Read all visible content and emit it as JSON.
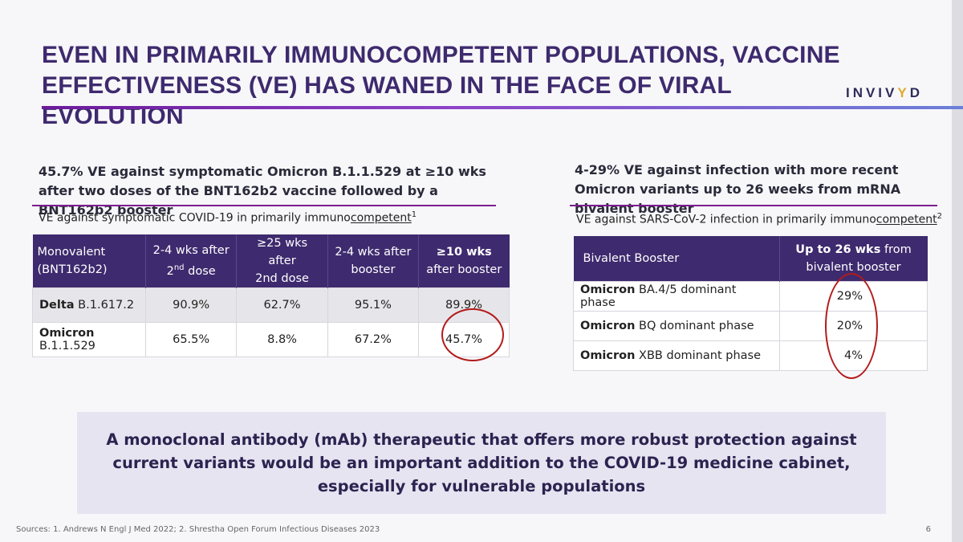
{
  "slide": {
    "title": "Even in primarily immunocompetent populations, vaccine effectiveness (VE) has waned in the face of viral evolution",
    "logo": {
      "prefix": "INVIV",
      "accent": "Y",
      "suffix": "D"
    },
    "page_number": "6",
    "sources": "Sources: 1. Andrews N Engl J Med 2022; 2. Shrestha Open Forum Infectious Diseases 2023"
  },
  "left": {
    "heading": "45.7% VE against symptomatic Omicron B.1.1.529 at ≥10 wks after two doses of the BNT162b2 vaccine followed by a BNT162b2 booster",
    "subtitle_pre": "VE against symptomatic COVID-19 in primarily immuno",
    "subtitle_u": "competent",
    "subtitle_sup": "1",
    "table": {
      "headers": {
        "col0_line1": "Monovalent",
        "col0_line2": "(BNT162b2)",
        "col1_line1": "2-4 wks after",
        "col1_line2_pre": "2",
        "col1_line2_sup": "nd",
        "col1_line2_post": " dose",
        "col2_line1": "≥25 wks after",
        "col2_line2": "2nd dose",
        "col3_line1": "2-4 wks after",
        "col3_line2": "booster",
        "col4_line1": "≥10 wks",
        "col4_line2": "after booster"
      },
      "rows": [
        {
          "label_bold": "Delta",
          "label_rest": " B.1.617.2",
          "v1": "90.9%",
          "v2": "62.7%",
          "v3": "95.1%",
          "v4": "89.9%"
        },
        {
          "label_bold": "Omicron",
          "label_rest": " B.1.1.529",
          "v1": "65.5%",
          "v2": "8.8%",
          "v3": "67.2%",
          "v4": "45.7%"
        }
      ]
    }
  },
  "right": {
    "heading": "4-29% VE against infection with more recent Omicron variants up to 26 weeks from mRNA bivalent booster",
    "subtitle_pre": "VE against SARS-CoV-2 infection in primarily immuno",
    "subtitle_u": "competent",
    "subtitle_sup": "2",
    "table": {
      "header_col0": "Bivalent Booster",
      "header_col1_bold": "Up to 26 wks",
      "header_col1_rest": " from",
      "header_col1_line2": "bivalent booster",
      "rows": [
        {
          "label_bold": "Omicron",
          "label_rest": " BA.4/5 dominant phase",
          "value": "29%"
        },
        {
          "label_bold": "Omicron",
          "label_rest": " BQ dominant phase",
          "value": "20%"
        },
        {
          "label_bold": "Omicron",
          "label_rest": " XBB dominant phase",
          "value": "4%"
        }
      ]
    }
  },
  "callout": "A monoclonal antibody (mAb) therapeutic that offers more robust protection against current variants would be an important addition to the COVID-19 medicine cabinet, especially for vulnerable populations",
  "colors": {
    "title": "#3e2a6e",
    "table_header": "#3e2a6e",
    "accent_rule": "#7b1f8f",
    "highlight_circle": "#b31b1b",
    "callout_bg": "#e6e4f1",
    "logo_accent": "#e0a92e"
  }
}
